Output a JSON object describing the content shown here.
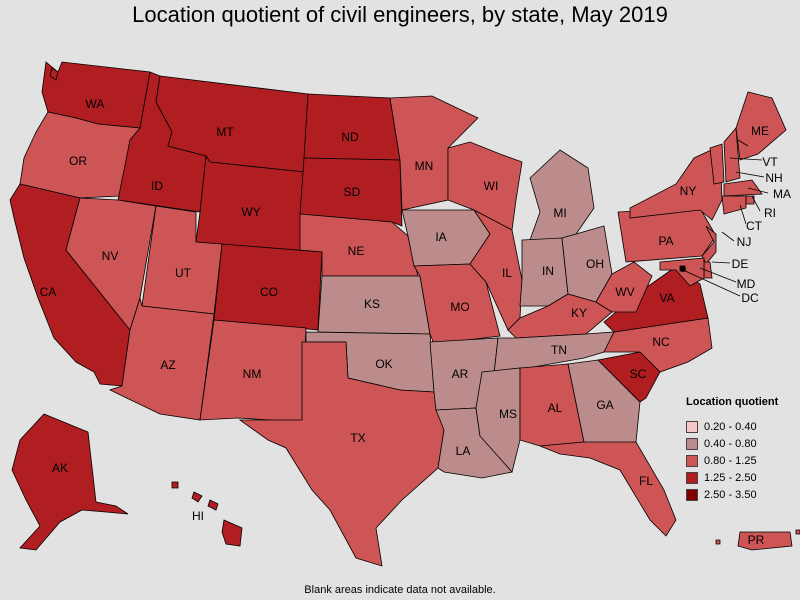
{
  "title": "Location quotient of civil engineers, by state, May 2019",
  "footnote": "Blank areas indicate data not available.",
  "legend": {
    "title": "Location quotient",
    "items": [
      {
        "label": "0.20 - 0.40",
        "color": "#f8c8c8"
      },
      {
        "label": "0.40 - 0.80",
        "color": "#bc8c8c"
      },
      {
        "label": "0.80 - 1.25",
        "color": "#ce5555"
      },
      {
        "label": "1.25 - 2.50",
        "color": "#b01e22"
      },
      {
        "label": "2.50 - 3.50",
        "color": "#800000"
      }
    ]
  },
  "states": [
    {
      "abbr": "WA",
      "class": "1.25 - 2.50"
    },
    {
      "abbr": "OR",
      "class": "0.80 - 1.25"
    },
    {
      "abbr": "CA",
      "class": "1.25 - 2.50"
    },
    {
      "abbr": "ID",
      "class": "1.25 - 2.50"
    },
    {
      "abbr": "NV",
      "class": "0.80 - 1.25"
    },
    {
      "abbr": "MT",
      "class": "1.25 - 2.50"
    },
    {
      "abbr": "WY",
      "class": "1.25 - 2.50"
    },
    {
      "abbr": "UT",
      "class": "0.80 - 1.25"
    },
    {
      "abbr": "AZ",
      "class": "0.80 - 1.25"
    },
    {
      "abbr": "CO",
      "class": "1.25 - 2.50"
    },
    {
      "abbr": "NM",
      "class": "0.80 - 1.25"
    },
    {
      "abbr": "ND",
      "class": "1.25 - 2.50"
    },
    {
      "abbr": "SD",
      "class": "1.25 - 2.50"
    },
    {
      "abbr": "NE",
      "class": "0.80 - 1.25"
    },
    {
      "abbr": "KS",
      "class": "0.40 - 0.80"
    },
    {
      "abbr": "OK",
      "class": "0.40 - 0.80"
    },
    {
      "abbr": "TX",
      "class": "0.80 - 1.25"
    },
    {
      "abbr": "MN",
      "class": "0.80 - 1.25"
    },
    {
      "abbr": "IA",
      "class": "0.40 - 0.80"
    },
    {
      "abbr": "MO",
      "class": "0.80 - 1.25"
    },
    {
      "abbr": "AR",
      "class": "0.40 - 0.80"
    },
    {
      "abbr": "LA",
      "class": "0.40 - 0.80"
    },
    {
      "abbr": "WI",
      "class": "0.80 - 1.25"
    },
    {
      "abbr": "IL",
      "class": "0.80 - 1.25"
    },
    {
      "abbr": "MI",
      "class": "0.40 - 0.80"
    },
    {
      "abbr": "IN",
      "class": "0.40 - 0.80"
    },
    {
      "abbr": "OH",
      "class": "0.40 - 0.80"
    },
    {
      "abbr": "KY",
      "class": "0.80 - 1.25"
    },
    {
      "abbr": "TN",
      "class": "0.40 - 0.80"
    },
    {
      "abbr": "MS",
      "class": "0.40 - 0.80"
    },
    {
      "abbr": "AL",
      "class": "0.80 - 1.25"
    },
    {
      "abbr": "GA",
      "class": "0.40 - 0.80"
    },
    {
      "abbr": "FL",
      "class": "0.80 - 1.25"
    },
    {
      "abbr": "SC",
      "class": "1.25 - 2.50"
    },
    {
      "abbr": "NC",
      "class": "0.80 - 1.25"
    },
    {
      "abbr": "VA",
      "class": "1.25 - 2.50"
    },
    {
      "abbr": "WV",
      "class": "0.80 - 1.25"
    },
    {
      "abbr": "PA",
      "class": "0.80 - 1.25"
    },
    {
      "abbr": "NY",
      "class": "0.80 - 1.25"
    },
    {
      "abbr": "VT",
      "class": "0.80 - 1.25"
    },
    {
      "abbr": "NH",
      "class": "0.80 - 1.25"
    },
    {
      "abbr": "ME",
      "class": "0.80 - 1.25"
    },
    {
      "abbr": "MA",
      "class": "0.80 - 1.25"
    },
    {
      "abbr": "RI",
      "class": "0.80 - 1.25"
    },
    {
      "abbr": "CT",
      "class": "0.80 - 1.25"
    },
    {
      "abbr": "NJ",
      "class": "0.80 - 1.25"
    },
    {
      "abbr": "DE",
      "class": "0.80 - 1.25"
    },
    {
      "abbr": "MD",
      "class": "0.80 - 1.25"
    },
    {
      "abbr": "DC",
      "class": "2.50 - 3.50"
    },
    {
      "abbr": "AK",
      "class": "1.25 - 2.50"
    },
    {
      "abbr": "HI",
      "class": "1.25 - 2.50"
    },
    {
      "abbr": "PR",
      "class": "0.80 - 1.25"
    }
  ]
}
